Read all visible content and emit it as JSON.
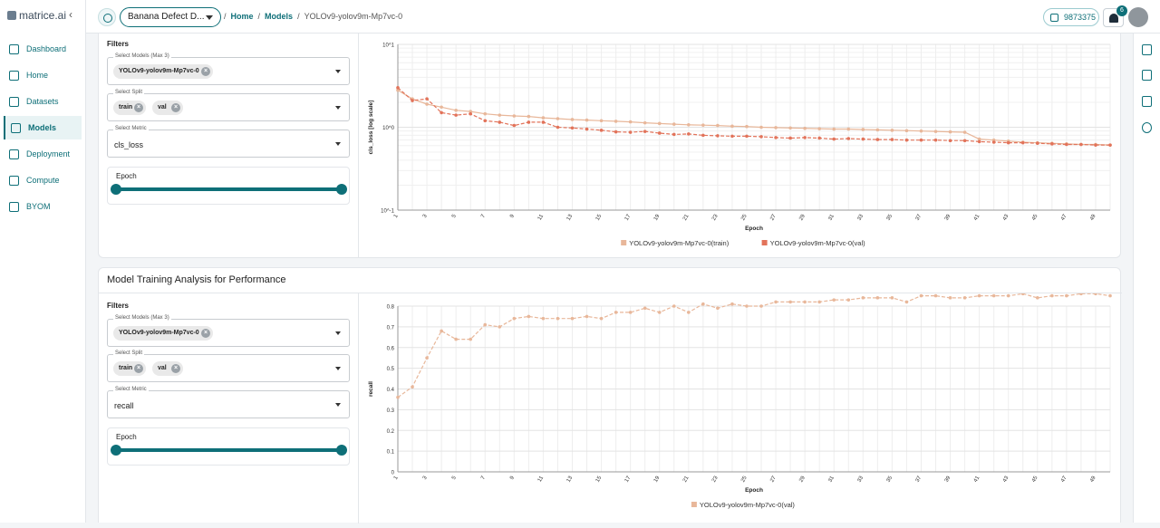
{
  "app": {
    "logo_text": "matrice.ai",
    "collapse_icon": "‹"
  },
  "sidebar": {
    "items": [
      {
        "label": "Dashboard",
        "icon": "dashboard-icon"
      },
      {
        "label": "Home",
        "icon": "home-icon"
      },
      {
        "label": "Datasets",
        "icon": "database-icon"
      },
      {
        "label": "Models",
        "icon": "models-icon",
        "active": true
      },
      {
        "label": "Deployment",
        "icon": "rocket-icon"
      },
      {
        "label": "Compute",
        "icon": "compute-icon"
      },
      {
        "label": "BYOM",
        "icon": "byom-icon"
      }
    ]
  },
  "header": {
    "project": "Banana Defect D...",
    "breadcrumb": [
      "Home",
      "Models",
      "YOLOv9-yolov9m-Mp7vc-0"
    ],
    "credits": "9873375",
    "notifications": "6"
  },
  "panel1": {
    "filters_title": "Filters",
    "select_models_label": "Select Models (Max 3)",
    "model_chip": "YOLOv9-yolov9m-Mp7vc-0",
    "select_split_label": "Select Split",
    "split_chips": [
      "train",
      "val"
    ],
    "select_metric_label": "Select Metric",
    "metric": "cls_loss",
    "epoch_label": "Epoch"
  },
  "panel2": {
    "title": "Model Training Analysis for Performance",
    "filters_title": "Filters",
    "select_models_label": "Select Models (Max 3)",
    "model_chip": "YOLOv9-yolov9m-Mp7vc-0",
    "select_split_label": "Select Split",
    "split_chips": [
      "train",
      "val"
    ],
    "select_metric_label": "Select Metric",
    "metric": "recall",
    "epoch_label": "Epoch"
  },
  "chart_data": [
    {
      "type": "line",
      "xlabel": "Epoch",
      "ylabel": "cls_loss [log scale]",
      "yscale": "log",
      "y_tick_labels": [
        "10^1",
        "10^0",
        "10^-1"
      ],
      "x": [
        1,
        2,
        3,
        4,
        5,
        6,
        7,
        8,
        9,
        10,
        11,
        12,
        13,
        14,
        15,
        16,
        17,
        18,
        19,
        20,
        21,
        22,
        23,
        24,
        25,
        26,
        27,
        28,
        29,
        30,
        31,
        32,
        33,
        34,
        35,
        36,
        37,
        38,
        39,
        40,
        41,
        42,
        43,
        44,
        45,
        46,
        47,
        48,
        49,
        50
      ],
      "x_tick_labels": [
        "1",
        "3",
        "5",
        "7",
        "9",
        "11",
        "13",
        "15",
        "17",
        "19",
        "21",
        "23",
        "25",
        "27",
        "29",
        "31",
        "33",
        "35",
        "37",
        "39",
        "41",
        "43",
        "45",
        "47",
        "49"
      ],
      "grid": true,
      "legend_position": "bottom",
      "series": [
        {
          "name": "YOLOv9-yolov9m-Mp7vc-0(train)",
          "color": "#e8b79a",
          "dash": false,
          "values": [
            2.8,
            2.2,
            1.9,
            1.75,
            1.6,
            1.55,
            1.45,
            1.4,
            1.37,
            1.35,
            1.3,
            1.27,
            1.24,
            1.22,
            1.2,
            1.18,
            1.16,
            1.13,
            1.11,
            1.09,
            1.07,
            1.06,
            1.05,
            1.03,
            1.02,
            1.0,
            0.99,
            0.98,
            0.97,
            0.96,
            0.95,
            0.95,
            0.94,
            0.93,
            0.92,
            0.91,
            0.9,
            0.89,
            0.88,
            0.87,
            0.72,
            0.7,
            0.68,
            0.66,
            0.65,
            0.64,
            0.63,
            0.62,
            0.62,
            0.61
          ]
        },
        {
          "name": "YOLOv9-yolov9m-Mp7vc-0(val)",
          "color": "#e2735a",
          "dash": true,
          "values": [
            3.0,
            2.1,
            2.2,
            1.5,
            1.4,
            1.45,
            1.2,
            1.15,
            1.05,
            1.15,
            1.15,
            1.0,
            0.98,
            0.95,
            0.92,
            0.88,
            0.87,
            0.89,
            0.85,
            0.82,
            0.83,
            0.8,
            0.79,
            0.78,
            0.78,
            0.77,
            0.75,
            0.74,
            0.75,
            0.74,
            0.72,
            0.73,
            0.72,
            0.71,
            0.71,
            0.7,
            0.7,
            0.7,
            0.69,
            0.69,
            0.67,
            0.66,
            0.65,
            0.65,
            0.64,
            0.63,
            0.62,
            0.62,
            0.61,
            0.61
          ]
        }
      ]
    },
    {
      "type": "line",
      "xlabel": "Epoch",
      "ylabel": "recall",
      "ylim": [
        0,
        0.8
      ],
      "y_tick_labels": [
        "0",
        "0.1",
        "0.2",
        "0.3",
        "0.4",
        "0.5",
        "0.6",
        "0.7",
        "0.8"
      ],
      "x": [
        1,
        2,
        3,
        4,
        5,
        6,
        7,
        8,
        9,
        10,
        11,
        12,
        13,
        14,
        15,
        16,
        17,
        18,
        19,
        20,
        21,
        22,
        23,
        24,
        25,
        26,
        27,
        28,
        29,
        30,
        31,
        32,
        33,
        34,
        35,
        36,
        37,
        38,
        39,
        40,
        41,
        42,
        43,
        44,
        45,
        46,
        47,
        48,
        49,
        50
      ],
      "x_tick_labels": [
        "1",
        "3",
        "5",
        "7",
        "9",
        "11",
        "13",
        "15",
        "17",
        "19",
        "21",
        "23",
        "25",
        "27",
        "29",
        "31",
        "33",
        "35",
        "37",
        "39",
        "41",
        "43",
        "45",
        "47",
        "49"
      ],
      "grid": true,
      "legend_position": "bottom",
      "series": [
        {
          "name": "YOLOv9-yolov9m-Mp7vc-0(val)",
          "color": "#e8b79a",
          "dash": true,
          "values": [
            0.36,
            0.41,
            0.55,
            0.68,
            0.64,
            0.64,
            0.71,
            0.7,
            0.74,
            0.75,
            0.74,
            0.74,
            0.74,
            0.75,
            0.74,
            0.77,
            0.77,
            0.79,
            0.77,
            0.8,
            0.77,
            0.81,
            0.79,
            0.81,
            0.8,
            0.8,
            0.82,
            0.82,
            0.82,
            0.82,
            0.83,
            0.83,
            0.84,
            0.84,
            0.84,
            0.82,
            0.85,
            0.85,
            0.84,
            0.84,
            0.85,
            0.85,
            0.85,
            0.86,
            0.84,
            0.85,
            0.85,
            0.86,
            0.86,
            0.85
          ]
        }
      ]
    }
  ]
}
